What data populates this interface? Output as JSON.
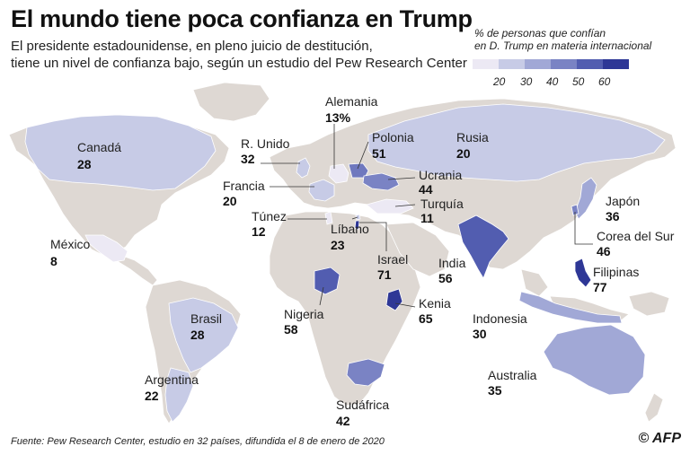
{
  "title": "El mundo tiene poca confianza en Trump",
  "subtitle": [
    "El presidente estadounidense, en pleno juicio de destitución,",
    "tiene un nivel de confianza bajo, según un estudio del Pew Research Center"
  ],
  "legend": {
    "title": [
      "% de personas que confían",
      "en D. Trump en materia internacional"
    ],
    "ticks": [
      "20",
      "30",
      "40",
      "50",
      "60"
    ],
    "colors": [
      "#ece9f4",
      "#c7cbe6",
      "#a1a8d6",
      "#7a83c4",
      "#525db0",
      "#2e3796"
    ]
  },
  "colors": {
    "background_land": "#ded8d3",
    "ocean": "#ffffff",
    "border": "#ffffff"
  },
  "countries": [
    {
      "name": "Canadá",
      "value": "28"
    },
    {
      "name": "R. Unido",
      "value": "32"
    },
    {
      "name": "Alemania",
      "value": "13%"
    },
    {
      "name": "Polonia",
      "value": "51"
    },
    {
      "name": "Rusia",
      "value": "20"
    },
    {
      "name": "Francia",
      "value": "20"
    },
    {
      "name": "Ucrania",
      "value": "44"
    },
    {
      "name": "Túnez",
      "value": "12"
    },
    {
      "name": "Turquía",
      "value": "11"
    },
    {
      "name": "Japón",
      "value": "36"
    },
    {
      "name": "México",
      "value": "8"
    },
    {
      "name": "Líbano",
      "value": "23"
    },
    {
      "name": "Corea del Sur",
      "value": "46"
    },
    {
      "name": "Israel",
      "value": "71"
    },
    {
      "name": "India",
      "value": "56"
    },
    {
      "name": "Filipinas",
      "value": "77"
    },
    {
      "name": "Brasil",
      "value": "28"
    },
    {
      "name": "Nigeria",
      "value": "58"
    },
    {
      "name": "Kenia",
      "value": "65"
    },
    {
      "name": "Indonesia",
      "value": "30"
    },
    {
      "name": "Australia",
      "value": "35"
    },
    {
      "name": "Argentina",
      "value": "22"
    },
    {
      "name": "Sudáfrica",
      "value": "42"
    }
  ],
  "source": "Fuente: Pew Research Center, estudio en 32 países, difundida el 8 de enero de 2020",
  "credit": "© AFP"
}
